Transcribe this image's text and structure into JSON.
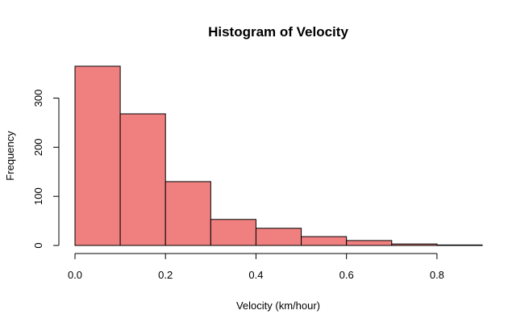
{
  "chart_data": {
    "type": "bar",
    "title": "Histogram of Velocity",
    "xlabel": "Velocity (km/hour)",
    "ylabel": "Frequency",
    "bins": [
      {
        "start": 0.0,
        "end": 0.1,
        "count": 365
      },
      {
        "start": 0.1,
        "end": 0.2,
        "count": 268
      },
      {
        "start": 0.2,
        "end": 0.3,
        "count": 130
      },
      {
        "start": 0.3,
        "end": 0.4,
        "count": 53
      },
      {
        "start": 0.4,
        "end": 0.5,
        "count": 35
      },
      {
        "start": 0.5,
        "end": 0.6,
        "count": 18
      },
      {
        "start": 0.6,
        "end": 0.7,
        "count": 10
      },
      {
        "start": 0.7,
        "end": 0.8,
        "count": 3
      },
      {
        "start": 0.8,
        "end": 0.9,
        "count": 1
      }
    ],
    "x_ticks": [
      0.0,
      0.2,
      0.4,
      0.6,
      0.8
    ],
    "x_tick_labels": [
      "0.0",
      "0.2",
      "0.4",
      "0.6",
      "0.8"
    ],
    "y_ticks": [
      0,
      100,
      200,
      300
    ],
    "y_tick_labels": [
      "0",
      "100",
      "200",
      "300"
    ],
    "xlim": [
      0.0,
      0.9
    ],
    "ylim": [
      0,
      365
    ],
    "grid": false,
    "bar_color": "#f08080",
    "edge_color": "#000000"
  }
}
